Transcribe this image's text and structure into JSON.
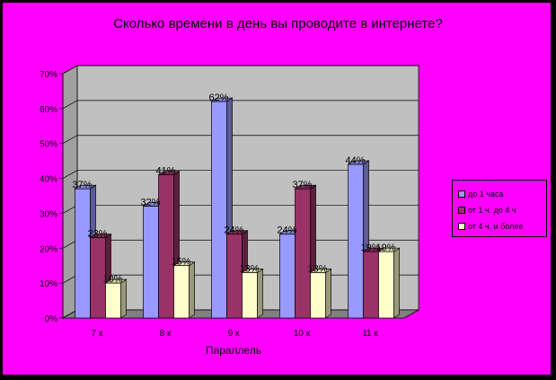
{
  "chart_data": {
    "type": "bar",
    "title": "Сколько времени в день вы проводите в интернете?",
    "xlabel": "Параллель",
    "ylabel": "",
    "categories": [
      "7 к",
      "8 к",
      "9 к",
      "10 к",
      "11 к"
    ],
    "y_ticks": [
      "0%",
      "10%",
      "20%",
      "30%",
      "40%",
      "50%",
      "60%",
      "70%"
    ],
    "ylim": [
      0,
      70
    ],
    "grid": true,
    "legend_position": "right",
    "series": [
      {
        "name": "до 1 часа",
        "values": [
          37,
          32,
          62,
          24,
          44
        ],
        "labels": [
          "37%",
          "32%",
          "62%",
          "24%",
          "44%"
        ],
        "color": "#9999ff"
      },
      {
        "name": "от 1 ч. до 4 ч",
        "values": [
          23,
          41,
          24,
          37,
          19
        ],
        "labels": [
          "23%",
          "41%",
          "24%",
          "37%",
          "19%"
        ],
        "color": "#993366"
      },
      {
        "name": "от 4 ч. и более",
        "values": [
          10,
          15,
          13,
          13,
          19
        ],
        "labels": [
          "10%",
          "15%",
          "13%",
          "13%",
          "19%"
        ],
        "color": "#ffffcc"
      }
    ]
  },
  "colors": {
    "background": "#ff00ff",
    "plot_wall": "#c0c0c0",
    "plot_floor": "#808080"
  }
}
